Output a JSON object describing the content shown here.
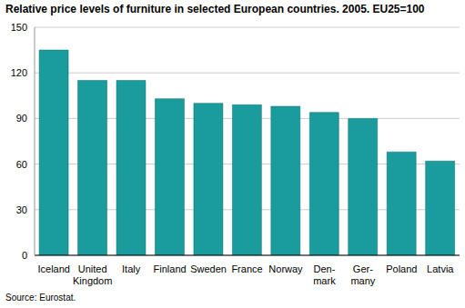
{
  "chart_data": {
    "type": "bar",
    "title": "Relative price levels of furniture in selected European countries. 2005. EU25=100",
    "source": "Source: Eurostat.",
    "categories": [
      "Iceland",
      "United Kingdom",
      "Italy",
      "Finland",
      "Sweden",
      "France",
      "Norway",
      "Den-mark",
      "Ger-many",
      "Poland",
      "Latvia"
    ],
    "values": [
      135,
      115,
      115,
      103,
      100,
      99,
      98,
      94,
      90,
      68,
      62
    ],
    "color": "#1a9c9c",
    "ylim": [
      0,
      150
    ],
    "yticks": [
      0,
      30,
      60,
      90,
      120,
      150
    ],
    "grid": true
  }
}
